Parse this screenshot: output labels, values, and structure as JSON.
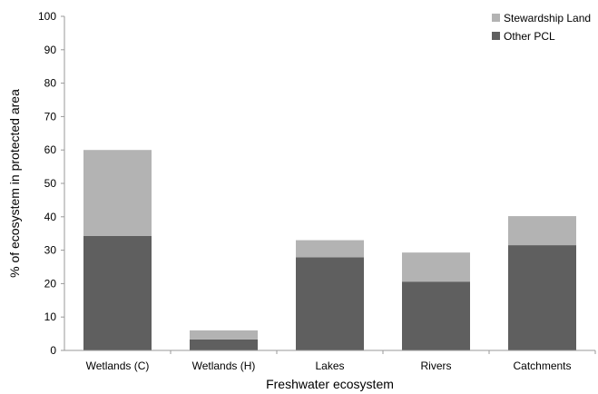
{
  "chart_data": {
    "type": "bar",
    "stacked": true,
    "categories": [
      "Wetlands (C)",
      "Wetlands (H)",
      "Lakes",
      "Rivers",
      "Catchments"
    ],
    "series": [
      {
        "name": "Other PCL",
        "values": [
          34.3,
          3.3,
          27.9,
          20.6,
          31.5
        ],
        "color": "#5f5f5f"
      },
      {
        "name": "Stewardship Land",
        "values": [
          25.7,
          2.7,
          5.1,
          8.7,
          8.7
        ],
        "color": "#b3b3b3"
      }
    ],
    "title": "",
    "xlabel": "Freshwater ecosystem",
    "ylabel": "% of ecosystem in protected area",
    "ylim": [
      0,
      100
    ],
    "yticks": [
      0,
      10,
      20,
      30,
      40,
      50,
      60,
      70,
      80,
      90,
      100
    ],
    "grid": false,
    "legend_position": "top-right"
  }
}
